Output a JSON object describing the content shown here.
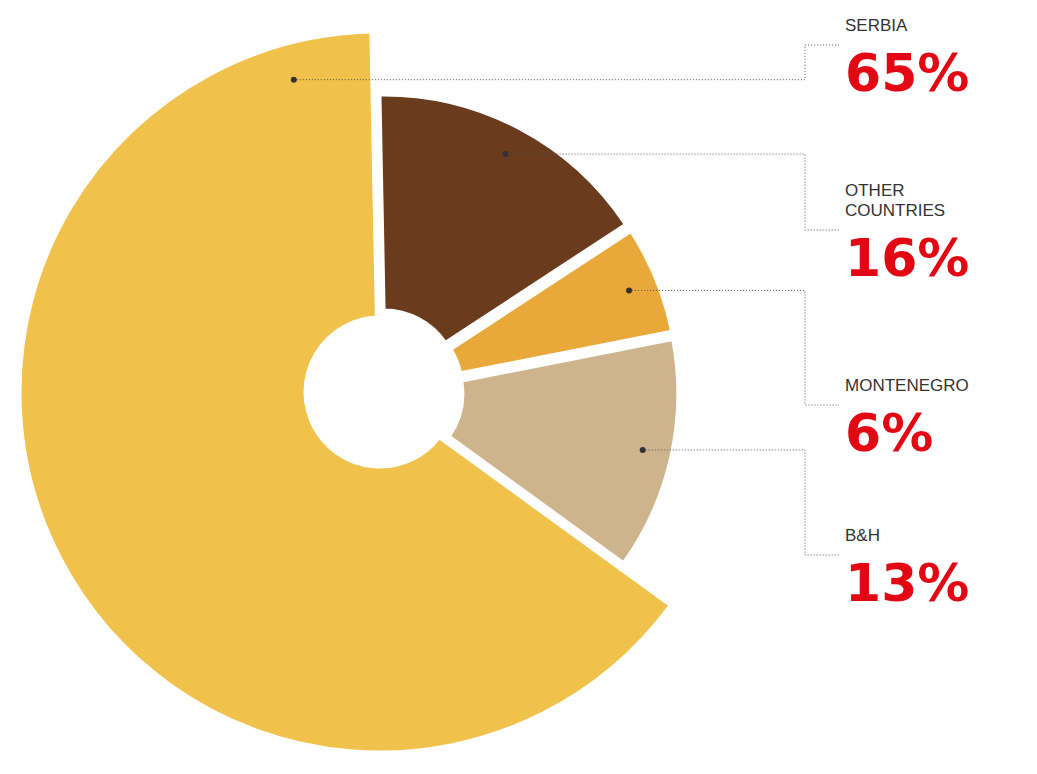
{
  "chart_data": {
    "type": "donut",
    "categories": [
      "SERBIA",
      "OTHER COUNTRIES",
      "MONTENEGRO",
      "B&H"
    ],
    "values": [
      65,
      16,
      6,
      13
    ],
    "value_labels": [
      "65%",
      "16%",
      "6%",
      "13%"
    ],
    "colors": [
      "#f0c14b",
      "#6b3b1e",
      "#e9a83a",
      "#cdb48d"
    ],
    "data_labels": true
  }
}
